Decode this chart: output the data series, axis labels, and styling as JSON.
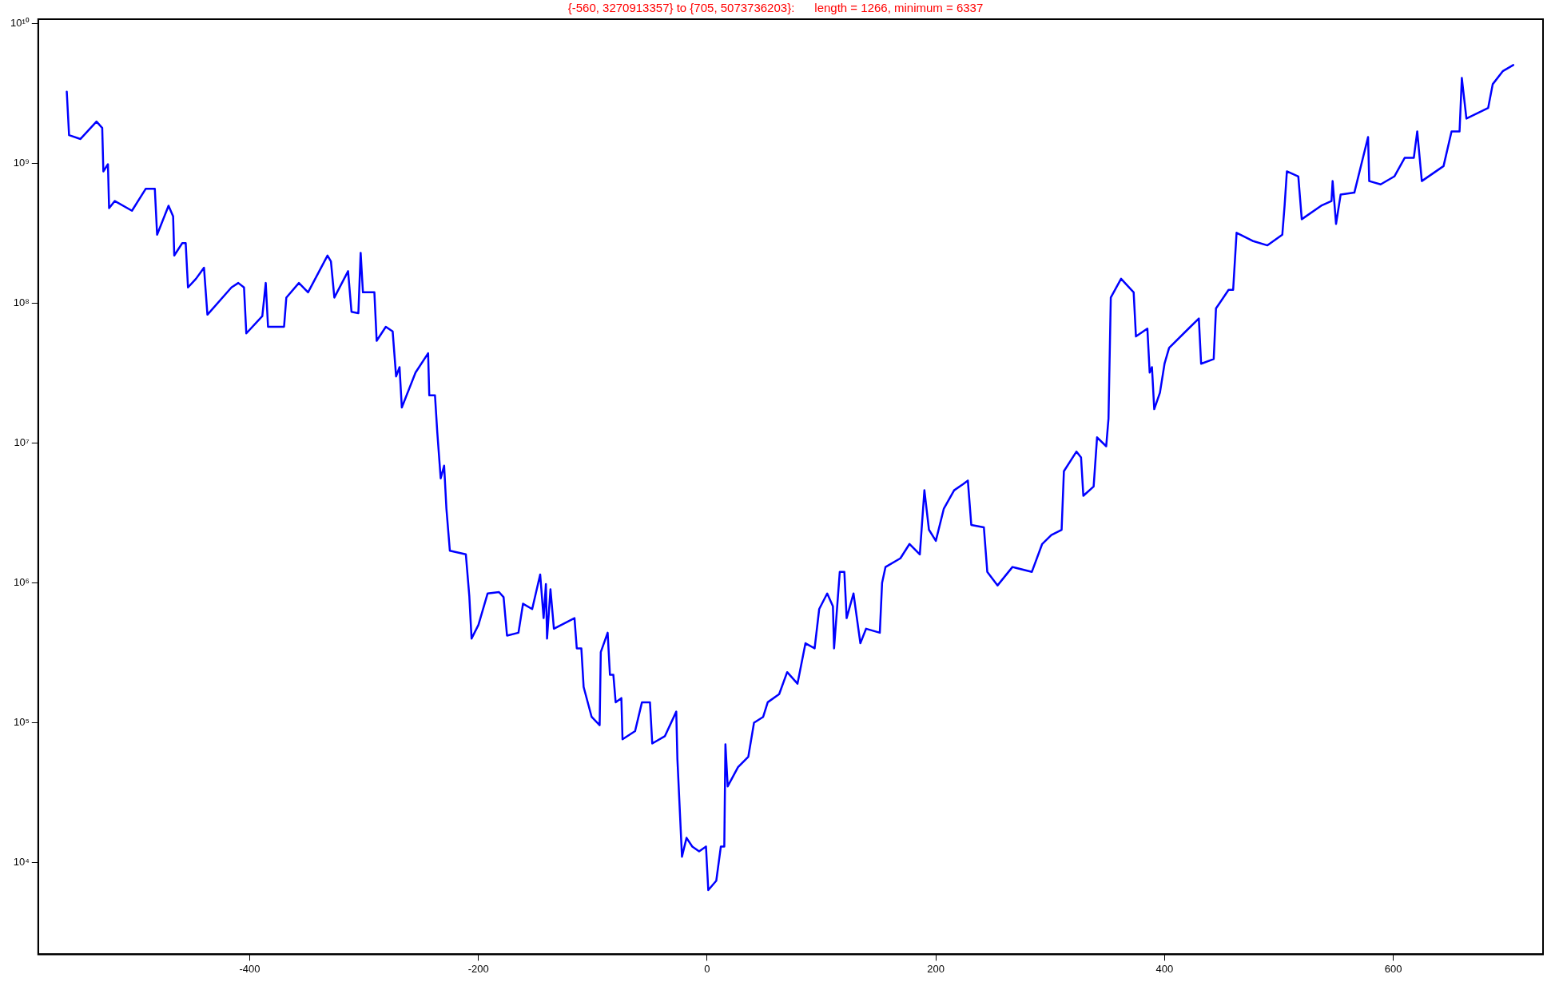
{
  "chart_data": {
    "type": "line",
    "title": "{-560, 3270913357} to {705, 5073736203}:      length = 1266, minimum = 6337",
    "log": "y",
    "grid": false,
    "legend": false,
    "marker": "none",
    "line_style": "solid",
    "xlim": [
      -585,
      731
    ],
    "ylim": [
      2200,
      10800000000
    ],
    "xticks": [
      -400,
      -200,
      0,
      200,
      400,
      600
    ],
    "yticks": [
      {
        "value": 10000,
        "label": "10⁴"
      },
      {
        "value": 100000,
        "label": "10⁵"
      },
      {
        "value": 1000000,
        "label": "10⁶"
      },
      {
        "value": 10000000,
        "label": "10⁷"
      },
      {
        "value": 100000000,
        "label": "10⁸"
      },
      {
        "value": 1000000000,
        "label": "10⁹"
      },
      {
        "value": 10000000000,
        "label": "10¹⁰"
      }
    ],
    "series": [
      {
        "color": "#0000ff",
        "x": [
          -560,
          -558,
          -548,
          -534,
          -529,
          -528,
          -524,
          -523,
          -518,
          -503,
          -491,
          -483,
          -481,
          -471,
          -467,
          -466,
          -459,
          -456,
          -454,
          -447,
          -440,
          -437,
          -416,
          -410,
          -405,
          -403,
          -389,
          -386,
          -384,
          -370,
          -368,
          -357,
          -349,
          -332,
          -329,
          -326,
          -314,
          -311,
          -305,
          -303,
          -301,
          -291,
          -289,
          -281,
          -275,
          -272,
          -269,
          -267,
          -255,
          -244,
          -243,
          -238,
          -236,
          -233,
          -230,
          -228,
          -225,
          -211,
          -208,
          -206,
          -200,
          -192,
          -182,
          -178,
          -175,
          -165,
          -161,
          -153,
          -146,
          -143,
          -141,
          -140,
          -137,
          -134,
          -116,
          -114,
          -110,
          -108,
          -101,
          -94,
          -93,
          -87,
          -85,
          -82,
          -80,
          -75,
          -74,
          -63,
          -57,
          -50,
          -48,
          -37,
          -27,
          -26,
          -22,
          -18,
          -13,
          -7,
          -1,
          1,
          8,
          12,
          15,
          16,
          18,
          27,
          36,
          41,
          49,
          53,
          63,
          70,
          79,
          86,
          94,
          98,
          105,
          110,
          111,
          116,
          120,
          122,
          128,
          134,
          139,
          151,
          153,
          156,
          169,
          177,
          186,
          190,
          194,
          200,
          207,
          216,
          224,
          228,
          231,
          242,
          245,
          254,
          267,
          284,
          293,
          301,
          310,
          312,
          323,
          327,
          329,
          338,
          341,
          349,
          351,
          353,
          362,
          373,
          375,
          385,
          387,
          389,
          391,
          396,
          400,
          404,
          421,
          430,
          432,
          443,
          445,
          456,
          460,
          463,
          477,
          490,
          503,
          505,
          507,
          517,
          520,
          537,
          546,
          547,
          550,
          554,
          566,
          578,
          579,
          589,
          601,
          610,
          618,
          621,
          625,
          644,
          651,
          658,
          660,
          664,
          683,
          687,
          696,
          705
        ],
        "values": [
          3270913357,
          1600000000.0,
          1500000000.0,
          2000000000.0,
          1800000000.0,
          880000000.0,
          990000000.0,
          480000000.0,
          540000000.0,
          460000000.0,
          660000000.0,
          660000000.0,
          310000000.0,
          500000000.0,
          420000000.0,
          220000000.0,
          270000000.0,
          270000000.0,
          130000000.0,
          150000000.0,
          180000000.0,
          83000000.0,
          130000000.0,
          140000000.0,
          130000000.0,
          61000000.0,
          81000000.0,
          140000000.0,
          68000000.0,
          68000000.0,
          110000000.0,
          140000000.0,
          120000000.0,
          220000000.0,
          200000000.0,
          110000000.0,
          170000000.0,
          87000000.0,
          85000000.0,
          230000000.0,
          120000000.0,
          120000000.0,
          54000000.0,
          68000000.0,
          63000000.0,
          30000000.0,
          35000000.0,
          18000000.0,
          32000000.0,
          44000000.0,
          22000000.0,
          22000000.0,
          12000000.0,
          5600000.0,
          6900000.0,
          3400000.0,
          1700000.0,
          1600000.0,
          810000.0,
          400000.0,
          500000.0,
          840000.0,
          860000.0,
          790000.0,
          420000.0,
          440000.0,
          710000.0,
          650000.0,
          1150000.0,
          560000.0,
          980000.0,
          400000.0,
          900000.0,
          470000.0,
          560000.0,
          340000.0,
          340000.0,
          180000.0,
          110000.0,
          96000.0,
          320000.0,
          440000.0,
          220000.0,
          220000.0,
          140000.0,
          150000.0,
          76000.0,
          87000.0,
          140000.0,
          140000.0,
          71000.0,
          80000.0,
          120000.0,
          55000.0,
          11000.0,
          15000.0,
          13000.0,
          12000.0,
          13000.0,
          6337,
          7400.0,
          13000.0,
          13000.0,
          70000.0,
          35000.0,
          48000.0,
          57000.0,
          100000.0,
          110000.0,
          140000.0,
          160000.0,
          230000.0,
          190000.0,
          370000.0,
          340000.0,
          650000.0,
          840000.0,
          680000.0,
          340000.0,
          1200000.0,
          1200000.0,
          560000.0,
          840000.0,
          370000.0,
          470000.0,
          440000.0,
          1000000.0,
          1300000.0,
          1500000.0,
          1900000.0,
          1600000.0,
          4600000.0,
          2400000.0,
          2000000.0,
          3400000.0,
          4600000.0,
          5100000.0,
          5400000.0,
          2600000.0,
          2500000.0,
          1200000.0,
          960000.0,
          1300000.0,
          1200000.0,
          1900000.0,
          2200000.0,
          2400000.0,
          6300000.0,
          8700000.0,
          7900000.0,
          4200000.0,
          4900000.0,
          11000000.0,
          9500000.0,
          15000000.0,
          110000000.0,
          150000000.0,
          120000000.0,
          58000000.0,
          66000000.0,
          32000000.0,
          35000000.0,
          17500000.0,
          23000000.0,
          37000000.0,
          48000000.0,
          66000000.0,
          78000000.0,
          37000000.0,
          40000000.0,
          92000000.0,
          125000000.0,
          125000000.0,
          320000000.0,
          280000000.0,
          260000000.0,
          310000000.0,
          500000000.0,
          880000000.0,
          810000000.0,
          400000000.0,
          500000000.0,
          540000000.0,
          750000000.0,
          370000000.0,
          600000000.0,
          620000000.0,
          1550000000.0,
          750000000.0,
          710000000.0,
          810000000.0,
          1100000000.0,
          1100000000.0,
          1700000000.0,
          750000000.0,
          960000000.0,
          1700000000.0,
          1700000000.0,
          4100000000.0,
          2100000000.0,
          2500000000.0,
          3700000000.0,
          4600000000.0,
          5073736203
        ]
      }
    ]
  }
}
